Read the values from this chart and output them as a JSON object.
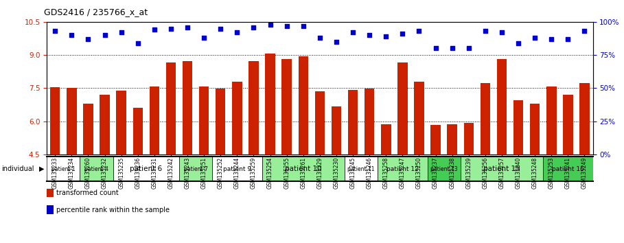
{
  "title": "GDS2416 / 235766_x_at",
  "samples": [
    "GSM135233",
    "GSM135234",
    "GSM135260",
    "GSM135232",
    "GSM135235",
    "GSM135236",
    "GSM135231",
    "GSM135242",
    "GSM135243",
    "GSM135251",
    "GSM135252",
    "GSM135244",
    "GSM135259",
    "GSM135254",
    "GSM135255",
    "GSM135261",
    "GSM135229",
    "GSM135230",
    "GSM135245",
    "GSM135246",
    "GSM135258",
    "GSM135247",
    "GSM135250",
    "GSM135237",
    "GSM135238",
    "GSM135239",
    "GSM135256",
    "GSM135257",
    "GSM135240",
    "GSM135248",
    "GSM135253",
    "GSM135241",
    "GSM135249"
  ],
  "bar_values": [
    7.55,
    7.52,
    6.78,
    7.2,
    7.4,
    6.6,
    7.58,
    8.65,
    8.72,
    7.58,
    7.47,
    7.8,
    8.72,
    9.08,
    8.82,
    8.93,
    7.37,
    6.68,
    7.42,
    7.47,
    5.85,
    8.65,
    7.78,
    5.82,
    5.87,
    5.92,
    7.72,
    8.82,
    6.95,
    6.78,
    7.57,
    7.2,
    7.72
  ],
  "percentile_values": [
    93,
    90,
    87,
    90,
    92,
    84,
    94,
    95,
    96,
    88,
    95,
    92,
    96,
    98,
    97,
    97,
    88,
    85,
    92,
    90,
    89,
    91,
    93,
    80,
    80,
    80,
    93,
    92,
    84,
    88,
    87,
    87,
    93
  ],
  "patients": [
    {
      "label": "patient 1",
      "start": 0,
      "end": 2,
      "color": "#ffffff"
    },
    {
      "label": "patient 4",
      "start": 2,
      "end": 4,
      "color": "#99ee99"
    },
    {
      "label": "patient 6",
      "start": 4,
      "end": 8,
      "color": "#ffffff"
    },
    {
      "label": "patient 7",
      "start": 8,
      "end": 10,
      "color": "#99ee99"
    },
    {
      "label": "patient 9",
      "start": 10,
      "end": 13,
      "color": "#ffffff"
    },
    {
      "label": "patient 10",
      "start": 13,
      "end": 18,
      "color": "#99ee99"
    },
    {
      "label": "patient 11",
      "start": 18,
      "end": 20,
      "color": "#ffffff"
    },
    {
      "label": "patient 12",
      "start": 20,
      "end": 23,
      "color": "#99ee99"
    },
    {
      "label": "patient 13",
      "start": 23,
      "end": 25,
      "color": "#44cc55"
    },
    {
      "label": "patient 15",
      "start": 25,
      "end": 30,
      "color": "#99ee99"
    },
    {
      "label": "patient 16",
      "start": 30,
      "end": 33,
      "color": "#44cc55"
    }
  ],
  "ymin": 4.5,
  "ymax": 10.5,
  "yticks_left": [
    4.5,
    6.0,
    7.5,
    9.0,
    10.5
  ],
  "yticks_right": [
    0,
    25,
    50,
    75,
    100
  ],
  "ytick_labels_right": [
    "0%",
    "25%",
    "50%",
    "75%",
    "100%"
  ],
  "bar_color": "#cc2200",
  "scatter_color": "#0000cc"
}
